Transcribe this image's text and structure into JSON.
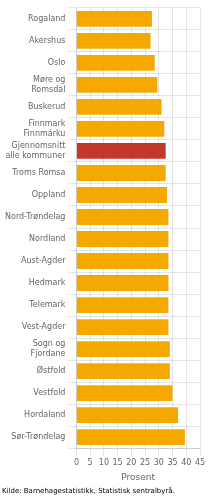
{
  "chart_data": {
    "type": "bar",
    "orientation": "horizontal",
    "categories": [
      "Rogaland",
      "Akershus",
      "Oslo",
      "Møre og\nRomsdal",
      "Buskerud",
      "Finnmark\nFinnmárku",
      "Gjennomsnitt\nalle kommuner",
      "Troms Romsa",
      "Oppland",
      "Nord-Trøndelag",
      "Nordland",
      "Aust-Agder",
      "Hedmark",
      "Telemark",
      "Vest-Agder",
      "Sogn og\nFjordane",
      "Østfold",
      "Vestfold",
      "Hordaland",
      "Sør-Trøndelag"
    ],
    "values": [
      27.5,
      27.0,
      28.5,
      29.5,
      31.0,
      32.0,
      32.5,
      32.5,
      33.0,
      33.5,
      33.5,
      33.5,
      33.5,
      33.5,
      33.5,
      34.0,
      34.0,
      35.0,
      37.0,
      39.5
    ],
    "colors": [
      "#F5A800",
      "#F5A800",
      "#F5A800",
      "#F5A800",
      "#F5A800",
      "#F5A800",
      "#C0392B",
      "#F5A800",
      "#F5A800",
      "#F5A800",
      "#F5A800",
      "#F5A800",
      "#F5A800",
      "#F5A800",
      "#F5A800",
      "#F5A800",
      "#F5A800",
      "#F5A800",
      "#F5A800",
      "#F5A800"
    ],
    "xlabel": "Prosent",
    "xlim": [
      0,
      45
    ],
    "xticks": [
      0,
      5,
      10,
      15,
      20,
      25,
      30,
      35,
      40,
      45
    ],
    "grid": true,
    "annotations": [
      "Kilde: Barnehagestatistikk, Statistisk sentralbyrå."
    ]
  }
}
